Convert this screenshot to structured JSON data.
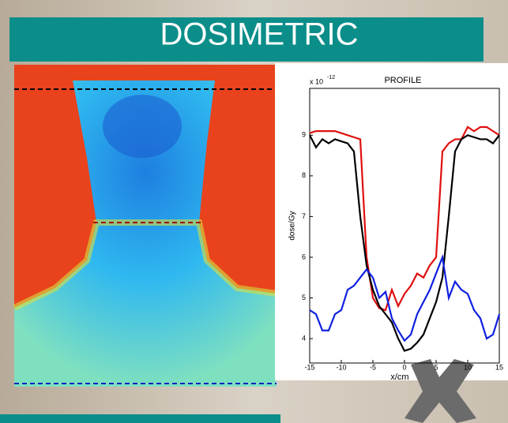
{
  "header": {
    "title": "DOSIMETRIC"
  },
  "chart_data": {
    "type": "line",
    "title": "PROFILE",
    "x_label": "x/cm",
    "y_label": "dose/Gy",
    "y_multiplier": "x 10",
    "y_exponent": "-12",
    "x": [
      -15,
      -14,
      -13,
      -12,
      -11,
      -10,
      -9,
      -8,
      -7,
      -6,
      -5,
      -4,
      -3,
      -2,
      -1,
      0,
      1,
      2,
      3,
      4,
      5,
      6,
      7,
      8,
      9,
      10,
      11,
      12,
      13,
      14,
      15
    ],
    "series": [
      {
        "color": "#e01010",
        "values": [
          9.05,
          9.1,
          9.1,
          9.1,
          9.1,
          9.05,
          9.0,
          8.95,
          8.9,
          6.0,
          5.0,
          4.75,
          4.7,
          5.2,
          4.8,
          5.1,
          5.3,
          5.6,
          5.5,
          5.8,
          6.0,
          8.6,
          8.8,
          8.9,
          8.9,
          9.2,
          9.1,
          9.2,
          9.2,
          9.1,
          9.0
        ]
      },
      {
        "color": "#000000",
        "values": [
          9.0,
          8.7,
          8.9,
          8.8,
          8.9,
          8.85,
          8.8,
          8.6,
          7.0,
          5.8,
          5.2,
          4.8,
          4.6,
          4.4,
          4.0,
          3.7,
          3.75,
          3.9,
          4.1,
          4.5,
          4.9,
          5.5,
          7.0,
          8.6,
          8.9,
          9.0,
          8.95,
          8.9,
          8.9,
          8.8,
          9.0
        ]
      },
      {
        "color": "#1020e0",
        "values": [
          4.7,
          4.6,
          4.2,
          4.2,
          4.6,
          4.7,
          5.2,
          5.3,
          5.5,
          5.7,
          5.5,
          5.0,
          5.15,
          4.5,
          4.2,
          3.95,
          4.1,
          4.6,
          4.9,
          5.2,
          5.6,
          6.0,
          5.0,
          5.4,
          5.2,
          5.1,
          4.7,
          4.5,
          4.0,
          4.1,
          4.6
        ]
      }
    ],
    "xlim": [
      -15,
      15
    ],
    "xticks": [
      -15,
      -10,
      -5,
      0,
      5,
      10,
      15
    ],
    "ylim": [
      3.4,
      10.15
    ],
    "yticks": [
      4,
      5,
      6,
      7,
      8,
      9
    ]
  }
}
